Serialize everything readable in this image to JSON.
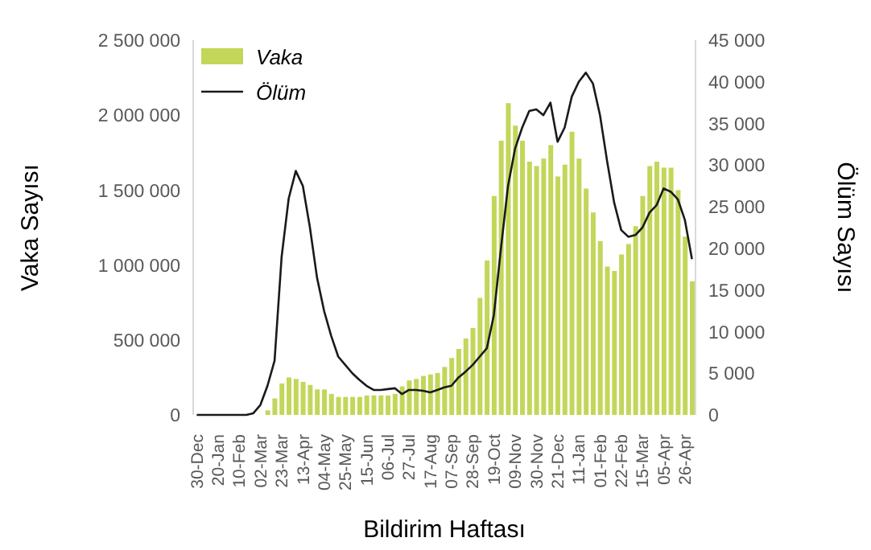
{
  "chart_data": {
    "type": "bar",
    "xlabel": "Bildirim Haftası",
    "ylabel": "Vaka Sayısı",
    "y2label": "Ölüm Sayısı",
    "categories": [
      "30-Dec",
      null,
      null,
      "20-Jan",
      null,
      null,
      "10-Feb",
      null,
      null,
      "02-Mar",
      null,
      null,
      "23-Mar",
      null,
      null,
      "13-Apr",
      null,
      null,
      "04-May",
      null,
      null,
      "25-May",
      null,
      null,
      "15-Jun",
      null,
      null,
      "06-Jul",
      null,
      null,
      "27-Jul",
      null,
      null,
      "17-Aug",
      null,
      null,
      "07-Sep",
      null,
      null,
      "28-Sep",
      null,
      null,
      "19-Oct",
      null,
      null,
      "09-Nov",
      null,
      null,
      "30-Nov",
      null,
      null,
      "21-Dec",
      null,
      null,
      "11-Jan",
      null,
      null,
      "01-Feb",
      null,
      null,
      "22-Feb",
      null,
      null,
      "15-Mar",
      null,
      null,
      "05-Apr",
      null,
      null,
      "26-Apr",
      null
    ],
    "series": [
      {
        "name": "Vaka",
        "color": "#c3d65a",
        "values": [
          0,
          0,
          0,
          0,
          0,
          0,
          0,
          0,
          0,
          0,
          30000,
          110000,
          210000,
          250000,
          240000,
          220000,
          200000,
          170000,
          170000,
          140000,
          120000,
          120000,
          120000,
          120000,
          130000,
          130000,
          130000,
          130000,
          140000,
          190000,
          230000,
          240000,
          260000,
          270000,
          280000,
          320000,
          380000,
          440000,
          510000,
          580000,
          780000,
          1030000,
          1460000,
          1830000,
          2080000,
          1930000,
          1830000,
          1690000,
          1660000,
          1710000,
          1800000,
          1590000,
          1670000,
          1890000,
          1710000,
          1510000,
          1350000,
          1160000,
          990000,
          960000,
          1070000,
          1140000,
          1260000,
          1460000,
          1660000,
          1690000,
          1650000,
          1650000,
          1500000,
          1190000,
          890000
        ]
      },
      {
        "name": "Ölüm",
        "type": "line",
        "axis": "y2",
        "color": "#1a1a1a",
        "values": [
          0,
          0,
          0,
          0,
          0,
          0,
          0,
          0,
          200,
          1200,
          3500,
          6500,
          19000,
          26000,
          29300,
          27500,
          22500,
          16500,
          12500,
          9500,
          7000,
          6000,
          5000,
          4200,
          3500,
          3000,
          3000,
          3100,
          3200,
          2500,
          3000,
          3000,
          2900,
          2700,
          3000,
          3300,
          3500,
          4500,
          5200,
          6000,
          7000,
          8000,
          12000,
          20000,
          27500,
          32000,
          34500,
          36500,
          36700,
          36000,
          37500,
          32800,
          34500,
          38200,
          40000,
          41100,
          39800,
          36000,
          30500,
          25500,
          22200,
          21400,
          21600,
          22500,
          24300,
          25200,
          27200,
          26800,
          25900,
          23400,
          18700
        ]
      }
    ],
    "ylim": [
      0,
      2500000
    ],
    "yticks": [
      {
        "value": 0,
        "label": "0"
      },
      {
        "value": 500000,
        "label": "500 000"
      },
      {
        "value": 1000000,
        "label": "1 000 000"
      },
      {
        "value": 1500000,
        "label": "1 500 000"
      },
      {
        "value": 2000000,
        "label": "2 000 000"
      },
      {
        "value": 2500000,
        "label": "2 500 000"
      }
    ],
    "y2lim": [
      0,
      45000
    ],
    "y2ticks": [
      {
        "value": 0,
        "label": "0"
      },
      {
        "value": 5000,
        "label": "5 000"
      },
      {
        "value": 10000,
        "label": "10 000"
      },
      {
        "value": 15000,
        "label": "15 000"
      },
      {
        "value": 20000,
        "label": "20 000"
      },
      {
        "value": 25000,
        "label": "25 000"
      },
      {
        "value": 30000,
        "label": "30 000"
      },
      {
        "value": 35000,
        "label": "35 000"
      },
      {
        "value": 40000,
        "label": "40 000"
      },
      {
        "value": 45000,
        "label": "45 000"
      }
    ],
    "legend": "top left"
  }
}
